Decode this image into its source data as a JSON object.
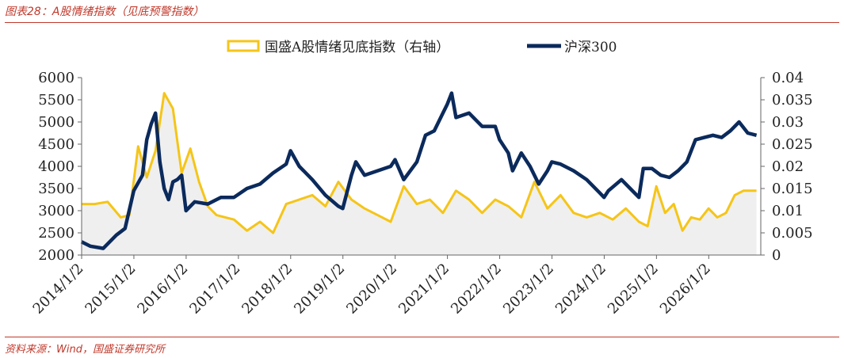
{
  "figure": {
    "title": "图表28：A股情绪指数（见底预警指数）",
    "source": "资料来源：Wind，国盛证券研究所"
  },
  "colors": {
    "accent": "#c0392b",
    "sentiment": "#f5c518",
    "fill": "#efefef",
    "csi300": "#0b2a5c"
  },
  "chart_data": {
    "type": "line",
    "title": "",
    "legend_placement": "top",
    "x_ticks": [
      "2014/1/2",
      "2015/1/2",
      "2016/1/2",
      "2017/1/2",
      "2018/1/2",
      "2019/1/2",
      "2020/1/2",
      "2021/1/2",
      "2022/1/2",
      "2023/1/2",
      "2024/1/2",
      "2025/1/2",
      "2026/1/2"
    ],
    "x_range": [
      "2014/1/2",
      "2026/12/31"
    ],
    "y_left": {
      "range": [
        2000,
        6000
      ],
      "ticks": [
        "6000",
        "5500",
        "5000",
        "4500",
        "4000",
        "3500",
        "3000",
        "2500",
        "2000"
      ]
    },
    "y_right": {
      "range": [
        0,
        0.04
      ],
      "ticks": [
        "0.04",
        "0.035",
        "0.03",
        "0.025",
        "0.02",
        "0.015",
        "0.01",
        "0.005",
        "0"
      ]
    },
    "series": [
      {
        "name": "国盛A股情绪见底指数（右轴）",
        "axis": "right",
        "style": "area",
        "x": [
          "2014/01",
          "2014/04",
          "2014/07",
          "2014/10",
          "2014/12",
          "2015/02",
          "2015/04",
          "2015/06",
          "2015/08",
          "2015/10",
          "2015/12",
          "2016/02",
          "2016/04",
          "2016/06",
          "2016/08",
          "2016/10",
          "2016/12",
          "2017/03",
          "2017/06",
          "2017/09",
          "2017/12",
          "2018/03",
          "2018/06",
          "2018/09",
          "2018/12",
          "2019/03",
          "2019/06",
          "2019/09",
          "2019/12",
          "2020/03",
          "2020/06",
          "2020/09",
          "2020/12",
          "2021/03",
          "2021/06",
          "2021/09",
          "2021/12",
          "2022/03",
          "2022/06",
          "2022/09",
          "2022/12",
          "2023/03",
          "2023/06",
          "2023/09",
          "2023/12",
          "2024/03",
          "2024/06",
          "2024/09",
          "2024/11",
          "2025/01",
          "2025/03",
          "2025/05",
          "2025/07",
          "2025/09",
          "2025/11",
          "2026/01",
          "2026/03",
          "2026/05",
          "2026/07",
          "2026/09",
          "2026/11",
          "2026/12"
        ],
        "values": [
          0.0115,
          0.0115,
          0.012,
          0.0085,
          0.009,
          0.0245,
          0.0175,
          0.0235,
          0.0365,
          0.033,
          0.0185,
          0.024,
          0.0165,
          0.011,
          0.009,
          0.0085,
          0.008,
          0.0055,
          0.0075,
          0.005,
          0.0115,
          0.0125,
          0.0135,
          0.011,
          0.0165,
          0.0125,
          0.0105,
          0.009,
          0.0075,
          0.0155,
          0.0115,
          0.0125,
          0.0095,
          0.0145,
          0.0125,
          0.0095,
          0.0125,
          0.011,
          0.0085,
          0.0165,
          0.0105,
          0.0135,
          0.0095,
          0.0085,
          0.0095,
          0.008,
          0.0105,
          0.0075,
          0.0065,
          0.0155,
          0.0095,
          0.0115,
          0.0055,
          0.0085,
          0.008,
          0.0105,
          0.0085,
          0.0095,
          0.0135,
          0.0145,
          0.0145,
          0.0145
        ]
      },
      {
        "name": "沪深300",
        "axis": "left",
        "style": "line",
        "x": [
          "2014/01",
          "2014/03",
          "2014/06",
          "2014/09",
          "2014/11",
          "2015/01",
          "2015/03",
          "2015/04",
          "2015/05",
          "2015/06",
          "2015/07",
          "2015/08",
          "2015/09",
          "2015/10",
          "2015/11",
          "2015/12",
          "2016/01",
          "2016/03",
          "2016/06",
          "2016/09",
          "2016/12",
          "2017/03",
          "2017/06",
          "2017/09",
          "2017/12",
          "2018/01",
          "2018/03",
          "2018/06",
          "2018/09",
          "2018/12",
          "2019/01",
          "2019/03",
          "2019/04",
          "2019/06",
          "2019/09",
          "2019/12",
          "2020/01",
          "2020/03",
          "2020/06",
          "2020/08",
          "2020/10",
          "2020/12",
          "2021/01",
          "2021/02",
          "2021/03",
          "2021/06",
          "2021/09",
          "2021/12",
          "2022/01",
          "2022/03",
          "2022/04",
          "2022/06",
          "2022/08",
          "2022/10",
          "2022/12",
          "2023/01",
          "2023/03",
          "2023/06",
          "2023/09",
          "2023/12",
          "2024/01",
          "2024/02",
          "2024/05",
          "2024/07",
          "2024/09",
          "2024/10",
          "2024/12",
          "2025/02",
          "2025/04",
          "2025/06",
          "2025/08",
          "2025/10",
          "2025/12",
          "2026/02",
          "2026/04",
          "2026/06",
          "2026/08",
          "2026/10",
          "2026/12"
        ],
        "values": [
          2300,
          2200,
          2150,
          2450,
          2600,
          3450,
          3800,
          4600,
          4950,
          5200,
          4100,
          3500,
          3250,
          3650,
          3700,
          3800,
          3000,
          3200,
          3150,
          3300,
          3300,
          3500,
          3600,
          3850,
          4050,
          4350,
          4000,
          3700,
          3350,
          3100,
          3050,
          3800,
          4100,
          3800,
          3900,
          4000,
          4150,
          3700,
          4100,
          4700,
          4800,
          5200,
          5400,
          5650,
          5100,
          5200,
          4900,
          4900,
          4600,
          4300,
          3900,
          4300,
          4000,
          3600,
          3900,
          4100,
          4050,
          3900,
          3700,
          3400,
          3300,
          3450,
          3700,
          3500,
          3300,
          3950,
          3950,
          3800,
          3750,
          3900,
          4100,
          4600,
          4650,
          4700,
          4650,
          4800,
          5000,
          4750,
          4700
        ]
      }
    ]
  }
}
